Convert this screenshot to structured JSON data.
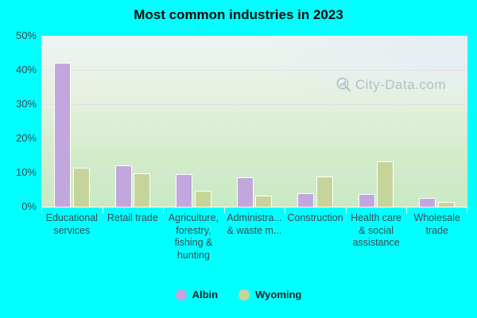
{
  "title": "Most common industries in 2023",
  "watermark": {
    "text": "City-Data.com",
    "icon": "magnifier-bar-chart-icon"
  },
  "colors": {
    "page_background": "#00ffff",
    "albin_bar": "#c1a7dd",
    "wyoming_bar": "#c6d49b",
    "bar_border": "#ffffff",
    "axis_text": "#3f4a52",
    "gridline": "#e7d8ec",
    "watermark_text": "#8d97a1"
  },
  "chart_data": {
    "type": "bar",
    "title": "Most common industries in 2023",
    "xlabel": "",
    "ylabel": "",
    "ylim": [
      0,
      50
    ],
    "y_ticks": [
      "0%",
      "10%",
      "20%",
      "30%",
      "40%",
      "50%"
    ],
    "grid": true,
    "legend_position": "bottom-center",
    "categories": [
      "Educational services",
      "Retail trade",
      "Agriculture, forestry, fishing & hunting",
      "Administra... & waste m...",
      "Construction",
      "Health care & social assistance",
      "Wholesale trade"
    ],
    "category_lines": [
      [
        "Educational",
        "services"
      ],
      [
        "Retail trade"
      ],
      [
        "Agriculture,",
        "forestry,",
        "fishing &",
        "hunting"
      ],
      [
        "Administra...",
        "& waste m..."
      ],
      [
        "Construction"
      ],
      [
        "Health care",
        "& social",
        "assistance"
      ],
      [
        "Wholesale",
        "trade"
      ]
    ],
    "series": [
      {
        "name": "Albin",
        "color": "#c1a7dd",
        "values": [
          42,
          12,
          9.5,
          8.5,
          4,
          3.8,
          2.6
        ]
      },
      {
        "name": "Wyoming",
        "color": "#c6d49b",
        "values": [
          11.5,
          9.8,
          4.7,
          3.2,
          8.8,
          13.3,
          1.5
        ]
      }
    ]
  }
}
